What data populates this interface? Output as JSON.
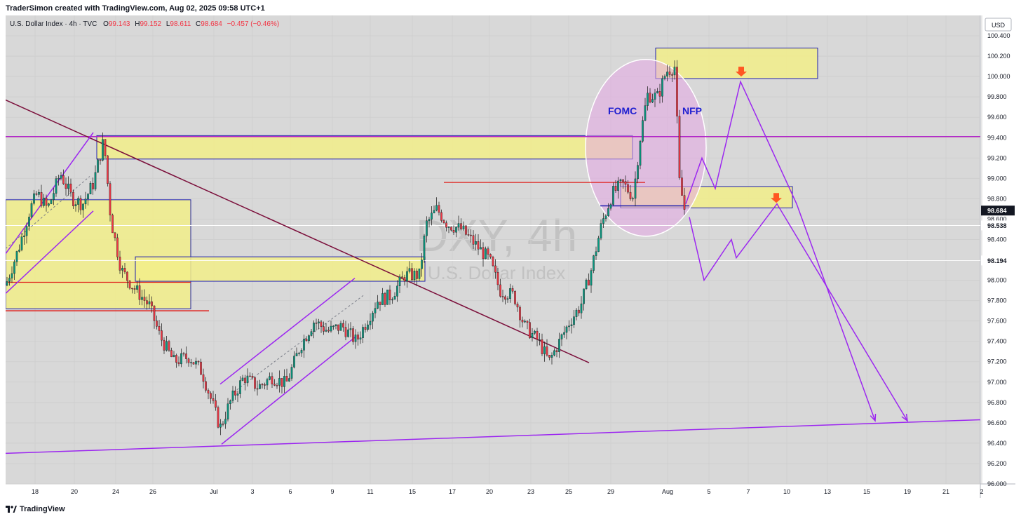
{
  "header": {
    "credit": "TraderSimon created with TradingView.com, Aug 02, 2025 09:58 UTC+1"
  },
  "footer": {
    "brand": "TradingView"
  },
  "chart_data": {
    "type": "candlestick",
    "title": "U.S. Dollar Index · 4h · TVC",
    "ohlc_label": {
      "o_label": "O",
      "o": "99.143",
      "h_label": "H",
      "h": "99.152",
      "l_label": "L",
      "l": "98.611",
      "c_label": "C",
      "c": "98.684",
      "change": "−0.457 (−0.46%)"
    },
    "watermark": {
      "symbol": "DXY, 4h",
      "name": "U.S. Dollar Index"
    },
    "currency_button": "USD",
    "ylim": [
      96.0,
      100.6
    ],
    "y_ticks": [
      "100.400",
      "100.200",
      "100.000",
      "99.800",
      "99.600",
      "99.400",
      "99.200",
      "99.000",
      "98.800",
      "98.600",
      "98.400",
      "98.200",
      "98.000",
      "97.800",
      "97.600",
      "97.400",
      "97.200",
      "97.000",
      "96.800",
      "96.600",
      "96.400",
      "96.200",
      "96.000"
    ],
    "x_ticks": [
      "18",
      "20",
      "24",
      "26",
      "Jul",
      "3",
      "6",
      "9",
      "11",
      "15",
      "17",
      "20",
      "23",
      "25",
      "29",
      "Aug",
      "5",
      "7",
      "10",
      "13",
      "15",
      "19",
      "21",
      "2"
    ],
    "price_labels": {
      "last": "98.684",
      "level_a": "98.538",
      "level_b": "98.194"
    },
    "annotations": {
      "fomc": "FOMC",
      "nfp": "NFP"
    },
    "colors": {
      "bull": "#089981",
      "bear": "#f23645",
      "zone_fill": "#f2ee8a",
      "zone_border": "#1f1fb0",
      "projection": "#9c27f0",
      "resistance": "#e91e63",
      "red_line": "#e0201b",
      "trend_line": "#7b0f3b",
      "ellipse": "#e6a7e6"
    }
  }
}
